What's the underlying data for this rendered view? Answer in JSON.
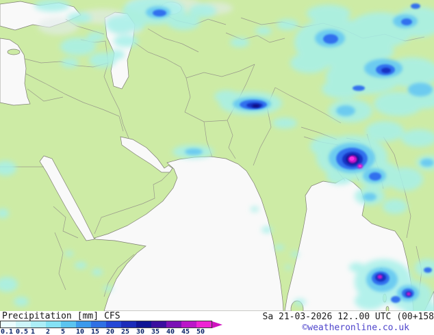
{
  "map": {
    "name": "precipitation-map-south-asia",
    "land_color": "#cdeba5",
    "sea_color": "#f9f9f9"
  },
  "legend": {
    "title": "Precipitation",
    "unit": "[mm]",
    "model": "CFS",
    "ticks": [
      "0.1",
      "0.5",
      "1",
      "2",
      "5",
      "10",
      "15",
      "20",
      "25",
      "30",
      "35",
      "40",
      "45",
      "50"
    ],
    "colors": [
      "#eafcff",
      "#cdf4fa",
      "#aceef8",
      "#84e2f5",
      "#5bc4f0",
      "#3a99ec",
      "#2f70e4",
      "#2448d6",
      "#1b2cba",
      "#101695",
      "#3a0f9f",
      "#7b12b5",
      "#ba16c8",
      "#ee23d4"
    ],
    "arrow_color": "#d014c0"
  },
  "footer": {
    "datetime": "Sa 21-03-2026 12..00 UTC (00+158",
    "copyright": "©weatheronline.co.uk"
  }
}
